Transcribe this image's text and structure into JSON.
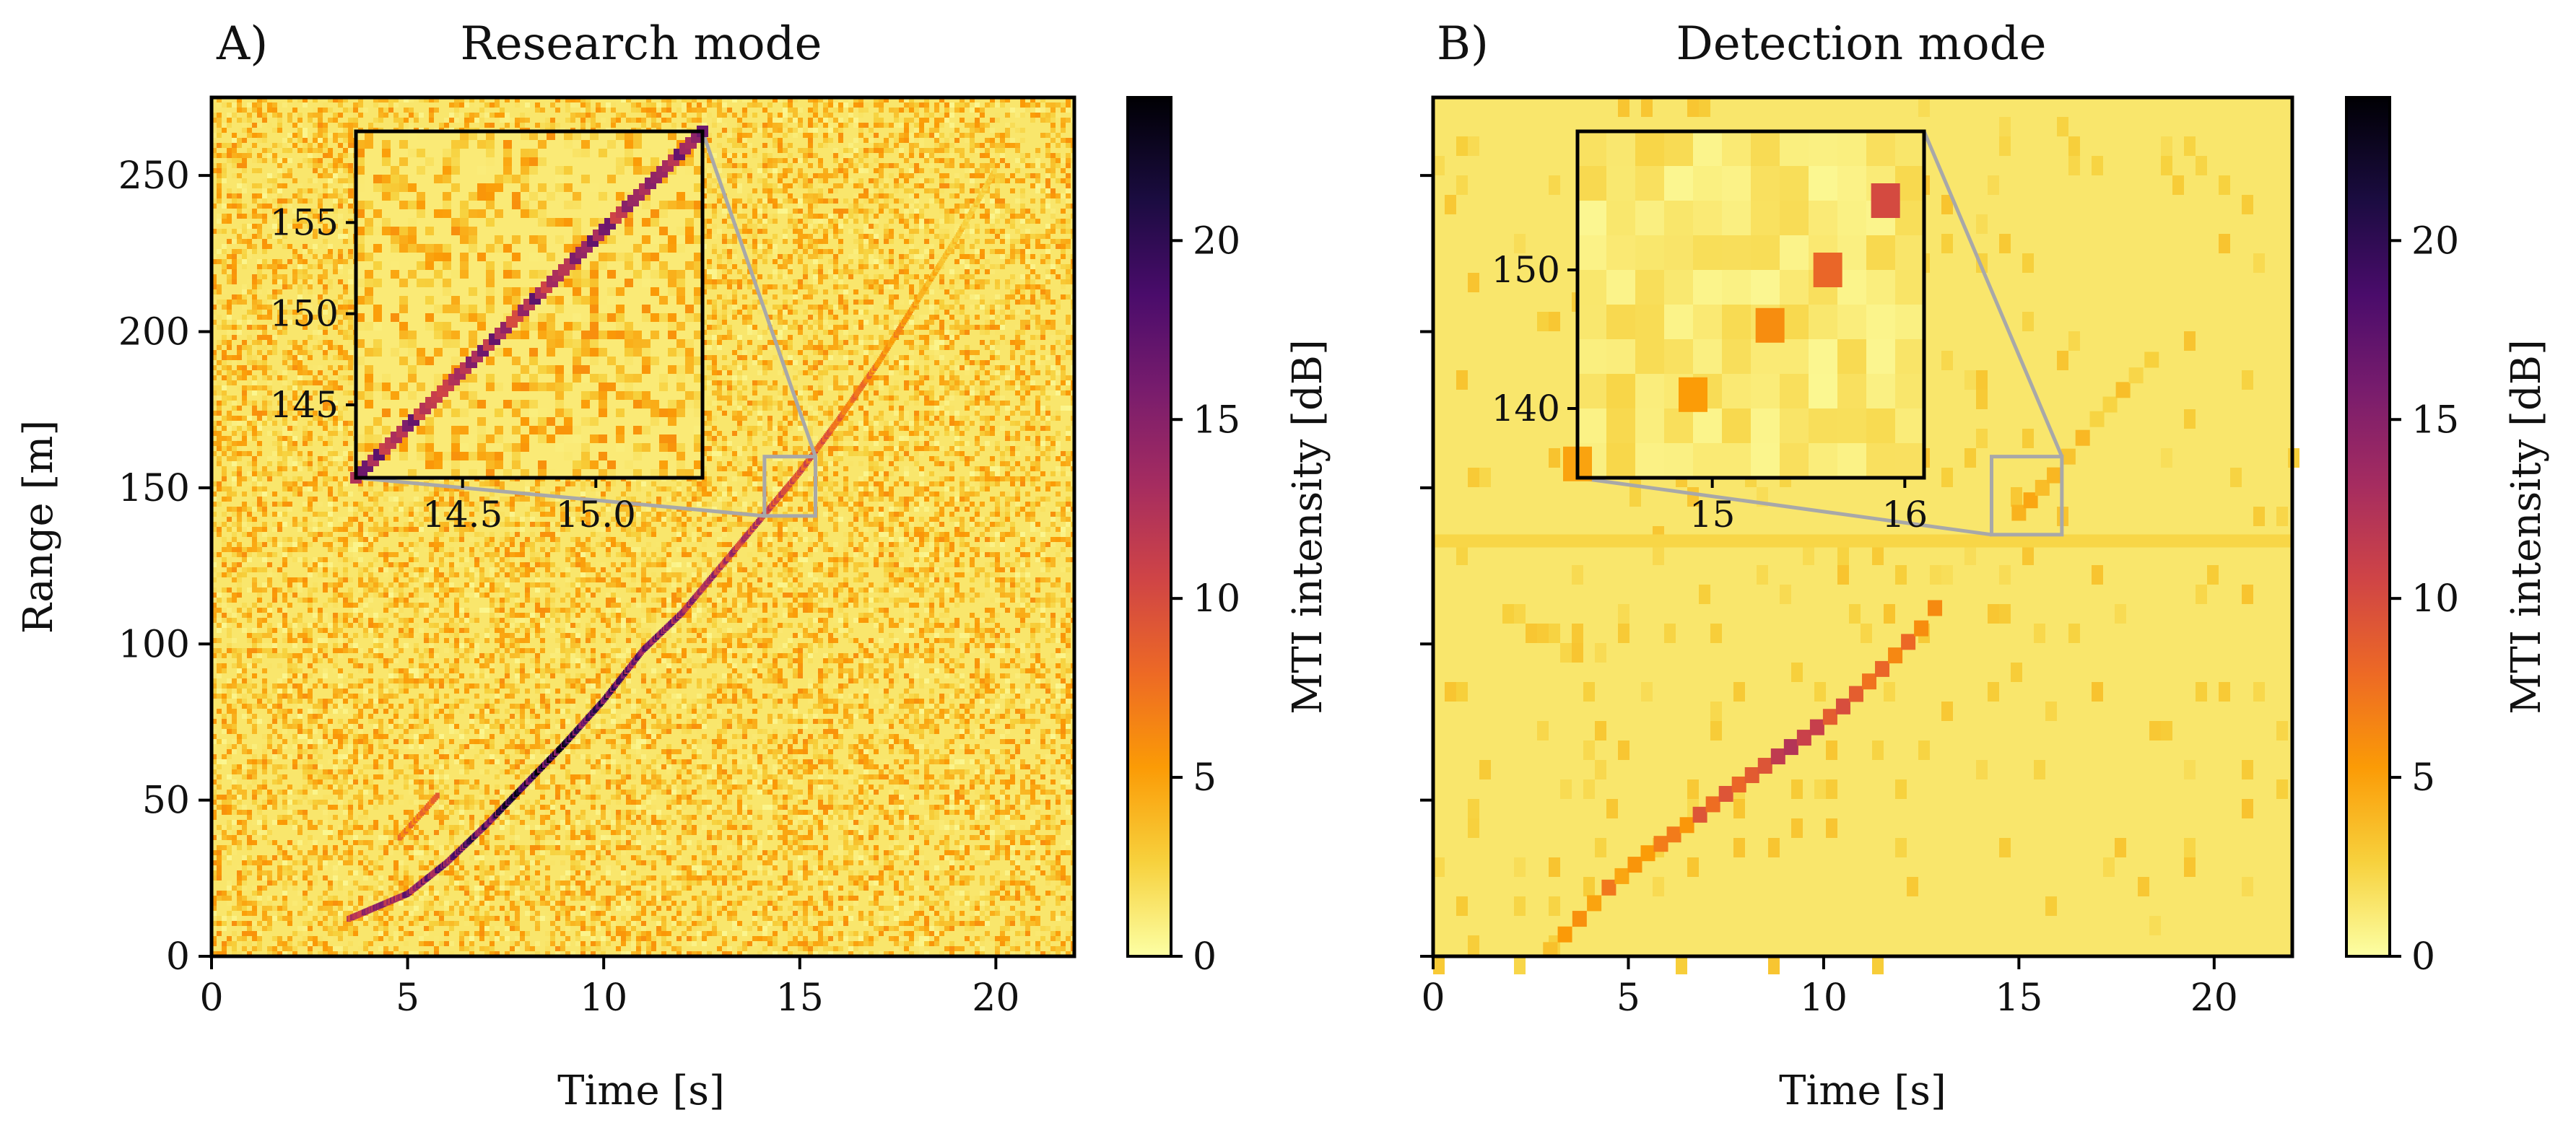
{
  "figure": {
    "layout": "two panels side by side, each with a colorbar and a zoom inset"
  },
  "colors": {
    "colormap": "inferno_r",
    "colormap_stops": [
      "#fcffa4",
      "#f7d13d",
      "#fb9b06",
      "#ed6925",
      "#cf4446",
      "#a52c60",
      "#781c6d",
      "#4a0c6b",
      "#1b0c41",
      "#000004"
    ],
    "inset_connector": "#a8a8a8"
  },
  "chart_data": [
    {
      "type": "heatmap",
      "panel_label": "A)",
      "title": "Research mode",
      "xlabel": "Time [s]",
      "ylabel": "Range [m]",
      "xlim": [
        0,
        22
      ],
      "ylim": [
        0,
        275
      ],
      "xticks": [
        0,
        5,
        10,
        15,
        20
      ],
      "xtick_labels": [
        "0",
        "5",
        "10",
        "15",
        "20"
      ],
      "yticks": [
        0,
        50,
        100,
        150,
        200,
        250
      ],
      "ytick_labels": [
        "0",
        "50",
        "100",
        "150",
        "200",
        "250"
      ],
      "show_ytick_labels": true,
      "resolution": "fine",
      "background_noise_db": [
        0.5,
        6
      ],
      "target_track": {
        "description": "accelerating target, range increases with time",
        "points": [
          [
            3.5,
            12
          ],
          [
            5,
            20
          ],
          [
            6,
            30
          ],
          [
            7,
            42
          ],
          [
            8,
            55
          ],
          [
            9,
            68
          ],
          [
            10,
            82
          ],
          [
            11,
            98
          ],
          [
            12,
            110
          ],
          [
            13,
            125
          ],
          [
            14,
            140
          ],
          [
            15,
            155
          ],
          [
            16,
            172
          ],
          [
            17,
            190
          ],
          [
            18,
            210
          ],
          [
            19,
            230
          ],
          [
            20,
            252
          ]
        ],
        "intensity_db": [
          3,
          21
        ]
      },
      "secondary_track": {
        "points": [
          [
            4.8,
            38
          ],
          [
            5.8,
            52
          ]
        ],
        "intensity_db": [
          6,
          9
        ]
      },
      "inset": {
        "xlim": [
          14.1,
          15.4
        ],
        "ylim": [
          141,
          160
        ],
        "xticks": [
          14.5,
          15.0
        ],
        "xtick_labels": [
          "14.5",
          "15.0"
        ],
        "yticks": [
          145,
          150,
          155
        ],
        "ytick_labels": [
          "145",
          "150",
          "155"
        ],
        "zoom_box_data": {
          "x": [
            14.1,
            15.4
          ],
          "y": [
            141,
            160
          ]
        },
        "track": [
          [
            14.1,
            141
          ],
          [
            15.4,
            160
          ]
        ]
      },
      "colorbar": {
        "label": "MTI intensity [dB]",
        "lim": [
          0,
          24
        ],
        "ticks": [
          0,
          5,
          10,
          15,
          20
        ],
        "tick_labels": [
          "0",
          "5",
          "10",
          "15",
          "20"
        ]
      }
    },
    {
      "type": "heatmap",
      "panel_label": "B)",
      "title": "Detection mode",
      "xlabel": "Time [s]",
      "ylabel": "",
      "xlim": [
        0,
        22
      ],
      "ylim": [
        0,
        275
      ],
      "xticks": [
        0,
        5,
        10,
        15,
        20
      ],
      "xtick_labels": [
        "0",
        "5",
        "10",
        "15",
        "20"
      ],
      "yticks": [
        0,
        50,
        100,
        150,
        200,
        250
      ],
      "ytick_labels": [],
      "show_ytick_labels": false,
      "resolution": "coarse",
      "horizontal_clutter_line_range_m": 133,
      "target_track": {
        "description": "coarse detections following the same accelerating target",
        "points": [
          [
            3.0,
            2
          ],
          [
            4.5,
            22
          ],
          [
            5.5,
            33
          ],
          [
            6.5,
            42
          ],
          [
            7.5,
            52
          ],
          [
            8.5,
            61
          ],
          [
            9.5,
            70
          ],
          [
            10.5,
            80
          ],
          [
            11.5,
            92
          ],
          [
            12.5,
            105
          ],
          [
            13.2,
            118
          ],
          [
            15.0,
            142
          ],
          [
            15.9,
            154
          ],
          [
            17.0,
            172
          ],
          [
            18.0,
            186
          ],
          [
            18.8,
            196
          ]
        ],
        "intensity_db": [
          1,
          12
        ]
      },
      "inset": {
        "xlim": [
          14.3,
          16.1
        ],
        "ylim": [
          135,
          160
        ],
        "xticks": [
          15,
          16
        ],
        "xtick_labels": [
          "15",
          "16"
        ],
        "yticks": [
          140,
          150
        ],
        "ytick_labels": [
          "140",
          "150"
        ],
        "zoom_box_data": {
          "x": [
            14.3,
            16.1
          ],
          "y": [
            135,
            160
          ]
        },
        "track": [
          [
            14.3,
            136
          ],
          [
            14.9,
            141
          ],
          [
            15.3,
            146
          ],
          [
            15.6,
            150
          ],
          [
            15.9,
            155
          ]
        ]
      },
      "colorbar": {
        "label": "MTI intensity [dB]",
        "lim": [
          0,
          24
        ],
        "ticks": [
          0,
          5,
          10,
          15,
          20
        ],
        "tick_labels": [
          "0",
          "5",
          "10",
          "15",
          "20"
        ]
      }
    }
  ]
}
